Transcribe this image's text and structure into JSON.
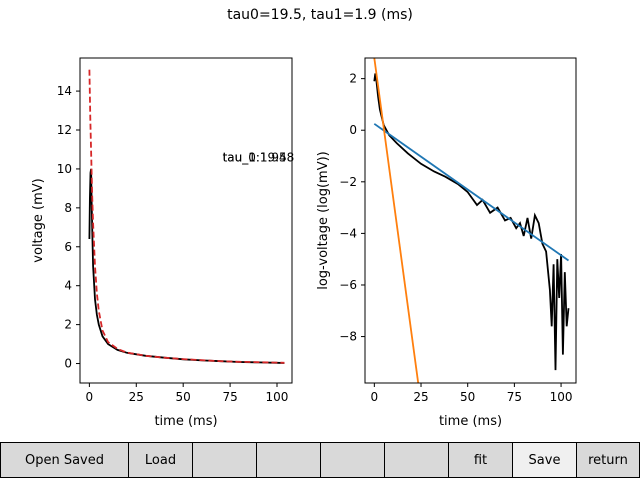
{
  "figure": {
    "title": "tau0=19.5, tau1=1.9 (ms)"
  },
  "chart_data": [
    {
      "type": "line",
      "title": "",
      "xlabel": "time (ms)",
      "ylabel": "voltage (mV)",
      "xlim": [
        -5,
        108
      ],
      "ylim": [
        -1,
        15.7
      ],
      "xticks": [
        0,
        25,
        50,
        75,
        100
      ],
      "yticks": [
        0,
        2,
        4,
        6,
        8,
        10,
        12,
        14
      ],
      "annotations": [
        {
          "text": "tau_0:19.58",
          "x": 71,
          "y": 10.6
        },
        {
          "text": "tau_1:1.94",
          "x": 71,
          "y": 10.6
        }
      ],
      "series": [
        {
          "color": "#000000",
          "style": "solid",
          "x": [
            0,
            0.3,
            0.6,
            0.9,
            1.2,
            1.6,
            2,
            3,
            4,
            5,
            7,
            10,
            15,
            20,
            30,
            40,
            50,
            60,
            70,
            80,
            90,
            100,
            104
          ],
          "y": [
            6.4,
            8.5,
            9.8,
            10.0,
            8.4,
            6.5,
            5.0,
            3.3,
            2.5,
            2.0,
            1.4,
            1.0,
            0.7,
            0.55,
            0.4,
            0.3,
            0.22,
            0.16,
            0.12,
            0.08,
            0.06,
            0.04,
            0.03
          ]
        },
        {
          "color": "#d62728",
          "style": "dashed",
          "x": [
            0,
            0.5,
            1,
            1.5,
            2,
            3,
            4,
            5,
            7,
            10,
            15,
            20,
            30,
            40,
            50,
            60,
            70,
            80,
            90,
            100,
            104
          ],
          "y": [
            15.1,
            12.6,
            10.5,
            8.6,
            7.2,
            5.0,
            3.6,
            2.7,
            1.7,
            1.1,
            0.75,
            0.56,
            0.4,
            0.3,
            0.23,
            0.17,
            0.12,
            0.09,
            0.07,
            0.05,
            0.04
          ]
        }
      ]
    },
    {
      "type": "line",
      "title": "",
      "xlabel": "time (ms)",
      "ylabel": "log-voltage (log(mV))",
      "xlim": [
        -5,
        108
      ],
      "ylim": [
        -9.8,
        2.8
      ],
      "xticks": [
        0,
        25,
        50,
        75,
        100
      ],
      "yticks": [
        -8,
        -6,
        -4,
        -2,
        0,
        2
      ],
      "series": [
        {
          "color": "#000000",
          "style": "solid",
          "x": [
            0,
            0.5,
            1,
            2,
            3,
            5,
            8,
            12,
            18,
            25,
            32,
            38,
            45,
            50,
            55,
            58,
            62,
            66,
            70,
            73,
            76,
            78,
            80,
            82,
            84,
            86,
            88,
            90,
            92,
            94,
            95,
            96,
            97,
            98,
            99,
            100,
            101,
            102,
            103,
            104
          ],
          "y": [
            1.9,
            2.2,
            2.0,
            1.3,
            0.8,
            0.2,
            -0.2,
            -0.5,
            -0.9,
            -1.3,
            -1.6,
            -1.8,
            -2.1,
            -2.4,
            -2.9,
            -2.7,
            -3.2,
            -3.0,
            -3.5,
            -3.4,
            -3.8,
            -3.6,
            -4.1,
            -3.4,
            -4.2,
            -3.3,
            -3.6,
            -4.4,
            -4.7,
            -6.2,
            -7.6,
            -5.2,
            -9.3,
            -5.0,
            -6.5,
            -4.8,
            -8.7,
            -5.5,
            -7.6,
            -6.9
          ]
        },
        {
          "color": "#1f77b4",
          "style": "solid",
          "x": [
            0,
            104
          ],
          "y": [
            0.25,
            -5.05
          ]
        },
        {
          "color": "#ff7f0e",
          "style": "solid",
          "x": [
            0,
            23.5
          ],
          "y": [
            2.8,
            -9.8
          ]
        }
      ]
    }
  ],
  "toolbar": {
    "buttons": [
      {
        "label": "Open Saved"
      },
      {
        "label": "Load"
      },
      {
        "label": ""
      },
      {
        "label": ""
      },
      {
        "label": ""
      },
      {
        "label": ""
      },
      {
        "label": "fit"
      },
      {
        "label": "Save"
      },
      {
        "label": "return"
      }
    ]
  }
}
